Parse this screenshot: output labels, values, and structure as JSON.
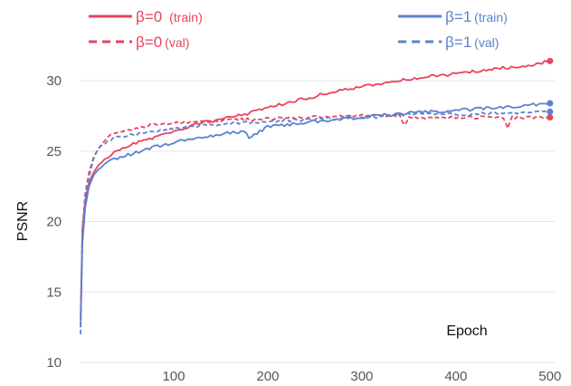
{
  "chart_data": {
    "type": "line",
    "title": "",
    "xlabel": "Epoch",
    "ylabel": "PSNR",
    "xlim": [
      0,
      505
    ],
    "ylim": [
      10,
      32
    ],
    "xticks": [
      100,
      200,
      300,
      400,
      500
    ],
    "yticks": [
      10,
      15,
      20,
      25,
      30
    ],
    "grid": "horizontal",
    "legend_position": "top",
    "series": [
      {
        "name": "β=0",
        "legend_suffix": "(train)",
        "style": "solid",
        "color": "#e8435e",
        "x": [
          1,
          3,
          6,
          10,
          15,
          20,
          30,
          40,
          60,
          80,
          100,
          130,
          160,
          175,
          185,
          200,
          250,
          300,
          350,
          400,
          450,
          480,
          500
        ],
        "y": [
          13.0,
          19.5,
          21.5,
          22.8,
          23.5,
          24.0,
          24.6,
          25.0,
          25.6,
          26.0,
          26.4,
          27.0,
          27.4,
          27.6,
          27.8,
          28.1,
          28.9,
          29.6,
          30.1,
          30.5,
          30.9,
          31.1,
          31.4
        ]
      },
      {
        "name": "β=0",
        "legend_suffix": "(val)",
        "style": "dashed",
        "color": "#e8435e",
        "x": [
          1,
          3,
          6,
          10,
          15,
          20,
          30,
          40,
          60,
          80,
          100,
          130,
          160,
          200,
          250,
          300,
          340,
          345,
          350,
          400,
          450,
          455,
          460,
          500
        ],
        "y": [
          12.5,
          19.5,
          22.0,
          23.5,
          24.6,
          25.2,
          26.0,
          26.3,
          26.6,
          26.9,
          27.0,
          27.1,
          27.2,
          27.3,
          27.4,
          27.5,
          27.5,
          26.8,
          27.4,
          27.4,
          27.4,
          26.6,
          27.4,
          27.4
        ]
      },
      {
        "name": "β=1",
        "legend_suffix": "(train)",
        "style": "solid",
        "color": "#5b82d0",
        "x": [
          1,
          3,
          6,
          10,
          15,
          20,
          30,
          40,
          60,
          80,
          100,
          130,
          160,
          175,
          180,
          200,
          250,
          300,
          350,
          400,
          450,
          500
        ],
        "y": [
          12.5,
          18.5,
          21.0,
          22.5,
          23.3,
          23.7,
          24.2,
          24.5,
          24.9,
          25.3,
          25.6,
          26.0,
          26.3,
          26.4,
          26.0,
          26.7,
          27.1,
          27.4,
          27.7,
          27.9,
          28.1,
          28.4
        ]
      },
      {
        "name": "β=1",
        "legend_suffix": "(val)",
        "style": "dashed",
        "color": "#5b82d0",
        "x": [
          1,
          3,
          6,
          10,
          15,
          20,
          30,
          40,
          60,
          80,
          100,
          130,
          160,
          200,
          250,
          300,
          350,
          400,
          450,
          500
        ],
        "y": [
          12.0,
          19.0,
          21.8,
          23.2,
          24.5,
          25.2,
          25.8,
          26.0,
          26.2,
          26.4,
          26.6,
          26.8,
          27.0,
          27.1,
          27.3,
          27.4,
          27.6,
          27.6,
          27.7,
          27.8
        ]
      }
    ]
  }
}
